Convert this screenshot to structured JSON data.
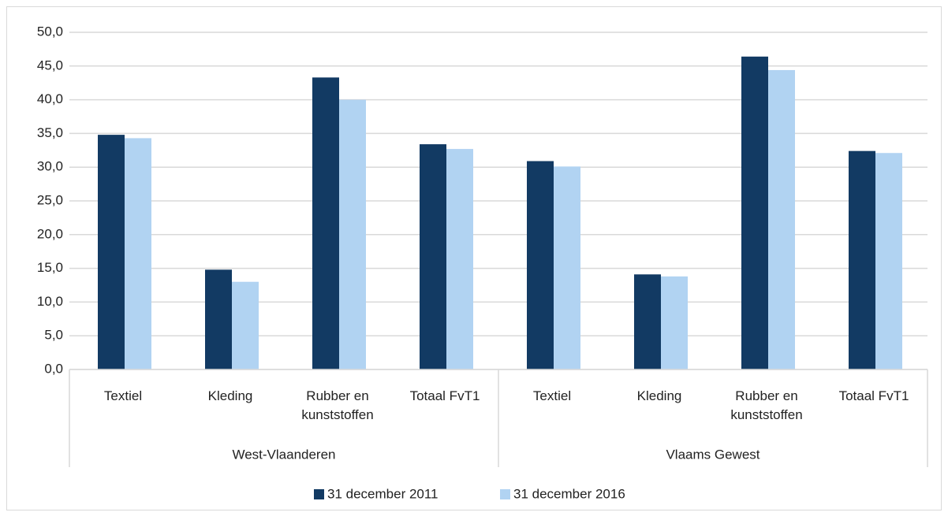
{
  "chart_data": {
    "type": "bar",
    "categories": [
      "Textiel",
      "Kleding",
      "Rubber en kunststoffen",
      "Totaal FvT1",
      "Textiel",
      "Kleding",
      "Rubber en kunststoffen",
      "Totaal FvT1"
    ],
    "groups": [
      "West-Vlaanderen",
      "Vlaams Gewest"
    ],
    "series": [
      {
        "name": "31 december 2011",
        "color": "#123a63",
        "values": [
          34.8,
          14.8,
          43.3,
          33.4,
          30.9,
          14.1,
          46.4,
          32.4
        ]
      },
      {
        "name": "31 december 2016",
        "color": "#b1d3f2",
        "values": [
          34.3,
          13.0,
          40.0,
          32.7,
          30.1,
          13.8,
          44.4,
          32.1
        ]
      }
    ],
    "ylim": [
      0,
      50
    ],
    "yticks": [
      {
        "value": 0,
        "label": "0,0"
      },
      {
        "value": 5,
        "label": "5,0"
      },
      {
        "value": 10,
        "label": "10,0"
      },
      {
        "value": 15,
        "label": "15,0"
      },
      {
        "value": 20,
        "label": "20,0"
      },
      {
        "value": 25,
        "label": "25,0"
      },
      {
        "value": 30,
        "label": "30,0"
      },
      {
        "value": 35,
        "label": "35,0"
      },
      {
        "value": 40,
        "label": "40,0"
      },
      {
        "value": 45,
        "label": "45,0"
      },
      {
        "value": 50,
        "label": "50,0"
      }
    ],
    "grid": true,
    "legend": "bottom"
  }
}
